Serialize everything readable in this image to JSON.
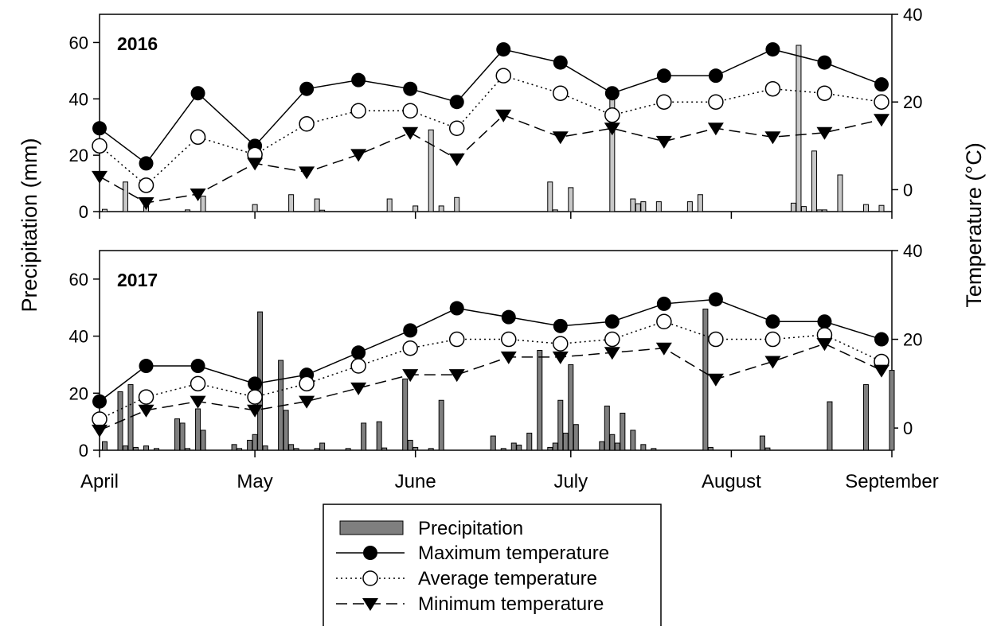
{
  "chart_data": [
    {
      "type": "bar+line",
      "panel_label": "2016",
      "ylabel_left": "Precipitation (mm)",
      "ylabel_right": "Temperature (°C)",
      "ylim_left": [
        0,
        70
      ],
      "yticks_left": [
        0,
        20,
        40,
        60
      ],
      "ylim_right": [
        -5,
        40
      ],
      "yticks_right": [
        0,
        20,
        40
      ],
      "x_unit": "day of year",
      "x_range": [
        91,
        244
      ],
      "month_ticks": [
        {
          "label": "April",
          "x": 91
        },
        {
          "label": "May",
          "x": 121
        },
        {
          "label": "June",
          "x": 152
        },
        {
          "label": "July",
          "x": 182
        },
        {
          "label": "August",
          "x": 213
        },
        {
          "label": "September",
          "x": 244
        }
      ],
      "precipitation": [
        [
          92,
          0.8
        ],
        [
          96,
          10.5
        ],
        [
          100,
          2.0
        ],
        [
          108,
          0.6
        ],
        [
          111,
          5.5
        ],
        [
          121,
          2.5
        ],
        [
          128,
          6.0
        ],
        [
          133,
          4.5
        ],
        [
          134,
          0.5
        ],
        [
          147,
          4.5
        ],
        [
          152,
          2.0
        ],
        [
          155,
          29.0
        ],
        [
          157,
          2.0
        ],
        [
          160,
          5.0
        ],
        [
          178,
          10.5
        ],
        [
          179,
          0.6
        ],
        [
          182,
          8.5
        ],
        [
          190,
          42.5
        ],
        [
          194,
          4.5
        ],
        [
          195,
          2.8
        ],
        [
          196,
          3.5
        ],
        [
          199,
          3.5
        ],
        [
          205,
          3.5
        ],
        [
          207,
          6.0
        ],
        [
          225,
          3.0
        ],
        [
          226,
          59.0
        ],
        [
          227,
          1.8
        ],
        [
          229,
          21.5
        ],
        [
          230,
          0.6
        ],
        [
          231,
          0.6
        ],
        [
          234,
          13.0
        ],
        [
          239,
          2.5
        ],
        [
          242,
          2.2
        ]
      ],
      "series": [
        {
          "name": "Maximum temperature",
          "x": [
            91,
            100,
            110,
            121,
            131,
            141,
            151,
            160,
            169,
            180,
            190,
            200,
            210,
            221,
            231,
            242
          ],
          "values": [
            14,
            6,
            22,
            10,
            23,
            25,
            23,
            20,
            32,
            29,
            22,
            26,
            26,
            32,
            29,
            24
          ]
        },
        {
          "name": "Average temperature",
          "x": [
            91,
            100,
            110,
            121,
            131,
            141,
            151,
            160,
            169,
            180,
            190,
            200,
            210,
            221,
            231,
            242
          ],
          "values": [
            10,
            1,
            12,
            8,
            15,
            18,
            18,
            14,
            26,
            22,
            17,
            20,
            20,
            23,
            22,
            20
          ]
        },
        {
          "name": "Minimum temperature",
          "x": [
            91,
            100,
            110,
            121,
            131,
            141,
            151,
            160,
            169,
            180,
            190,
            200,
            210,
            221,
            231,
            242
          ],
          "values": [
            3,
            -3,
            -1,
            6,
            4,
            8,
            13,
            7,
            17,
            12,
            14,
            11,
            14,
            12,
            13,
            16
          ]
        }
      ]
    },
    {
      "type": "bar+line",
      "panel_label": "2017",
      "ylabel_left": "Precipitation (mm)",
      "ylabel_right": "Temperature (°C)",
      "ylim_left": [
        0,
        70
      ],
      "yticks_left": [
        0,
        20,
        40,
        60
      ],
      "ylim_right": [
        -5,
        40
      ],
      "yticks_right": [
        0,
        20,
        40
      ],
      "x_unit": "day of year",
      "x_range": [
        91,
        244
      ],
      "month_ticks": [
        {
          "label": "April",
          "x": 91
        },
        {
          "label": "May",
          "x": 121
        },
        {
          "label": "June",
          "x": 152
        },
        {
          "label": "July",
          "x": 182
        },
        {
          "label": "August",
          "x": 213
        },
        {
          "label": "September",
          "x": 244
        }
      ],
      "precipitation": [
        [
          92,
          3.0
        ],
        [
          95,
          20.5
        ],
        [
          96,
          1.5
        ],
        [
          97,
          23.0
        ],
        [
          98,
          1.0
        ],
        [
          100,
          1.5
        ],
        [
          102,
          0.6
        ],
        [
          106,
          11.0
        ],
        [
          107,
          9.5
        ],
        [
          108,
          0.6
        ],
        [
          110,
          14.5
        ],
        [
          111,
          7.0
        ],
        [
          117,
          2.0
        ],
        [
          118,
          0.6
        ],
        [
          120,
          3.5
        ],
        [
          121,
          5.5
        ],
        [
          122,
          48.5
        ],
        [
          123,
          1.5
        ],
        [
          126,
          31.5
        ],
        [
          127,
          14.0
        ],
        [
          128,
          2.0
        ],
        [
          129,
          0.6
        ],
        [
          133,
          0.6
        ],
        [
          134,
          2.5
        ],
        [
          139,
          0.6
        ],
        [
          142,
          9.5
        ],
        [
          145,
          10.0
        ],
        [
          146,
          0.8
        ],
        [
          150,
          25.0
        ],
        [
          151,
          3.5
        ],
        [
          152,
          1.0
        ],
        [
          155,
          0.6
        ],
        [
          157,
          17.5
        ],
        [
          167,
          5.0
        ],
        [
          169,
          0.6
        ],
        [
          171,
          2.5
        ],
        [
          172,
          1.8
        ],
        [
          174,
          6.0
        ],
        [
          176,
          35.0
        ],
        [
          178,
          1.0
        ],
        [
          179,
          2.5
        ],
        [
          180,
          17.5
        ],
        [
          181,
          6.0
        ],
        [
          182,
          30.0
        ],
        [
          183,
          9.0
        ],
        [
          188,
          3.0
        ],
        [
          189,
          15.5
        ],
        [
          190,
          5.5
        ],
        [
          191,
          2.5
        ],
        [
          192,
          13.0
        ],
        [
          194,
          7.0
        ],
        [
          196,
          2.0
        ],
        [
          198,
          0.6
        ],
        [
          208,
          49.5
        ],
        [
          209,
          1.0
        ],
        [
          219,
          5.0
        ],
        [
          220,
          0.8
        ],
        [
          232,
          17.0
        ],
        [
          239,
          23.0
        ],
        [
          244,
          28.0
        ]
      ],
      "series": [
        {
          "name": "Maximum temperature",
          "x": [
            91,
            100,
            110,
            121,
            131,
            141,
            151,
            160,
            170,
            180,
            190,
            200,
            210,
            221,
            231,
            242
          ],
          "values": [
            6,
            14,
            14,
            10,
            12,
            17,
            22,
            27,
            25,
            23,
            24,
            28,
            29,
            24,
            24,
            20
          ]
        },
        {
          "name": "Average temperature",
          "x": [
            91,
            100,
            110,
            121,
            131,
            141,
            151,
            160,
            170,
            180,
            190,
            200,
            210,
            221,
            231,
            242
          ],
          "values": [
            2,
            7,
            10,
            7,
            10,
            14,
            18,
            20,
            20,
            19,
            20,
            24,
            20,
            20,
            21,
            15
          ]
        },
        {
          "name": "Minimum temperature",
          "x": [
            91,
            100,
            110,
            121,
            131,
            141,
            151,
            160,
            170,
            180,
            190,
            200,
            210,
            221,
            231,
            242
          ],
          "values": [
            -0.5,
            4,
            6,
            4,
            6,
            9,
            12,
            12,
            16,
            16,
            17,
            18,
            11,
            15,
            19,
            13
          ]
        }
      ]
    }
  ],
  "legend": {
    "items": [
      {
        "key": "precip",
        "label": "Precipitation"
      },
      {
        "key": "max",
        "label": "Maximum temperature"
      },
      {
        "key": "avg",
        "label": "Average temperature"
      },
      {
        "key": "min",
        "label": "Minimum temperature"
      }
    ]
  },
  "colors": {
    "precip_2016": "#c8c8c8",
    "precip_2017": "#7f7f7f",
    "line": "#000000",
    "marker_open": "#ffffff"
  }
}
